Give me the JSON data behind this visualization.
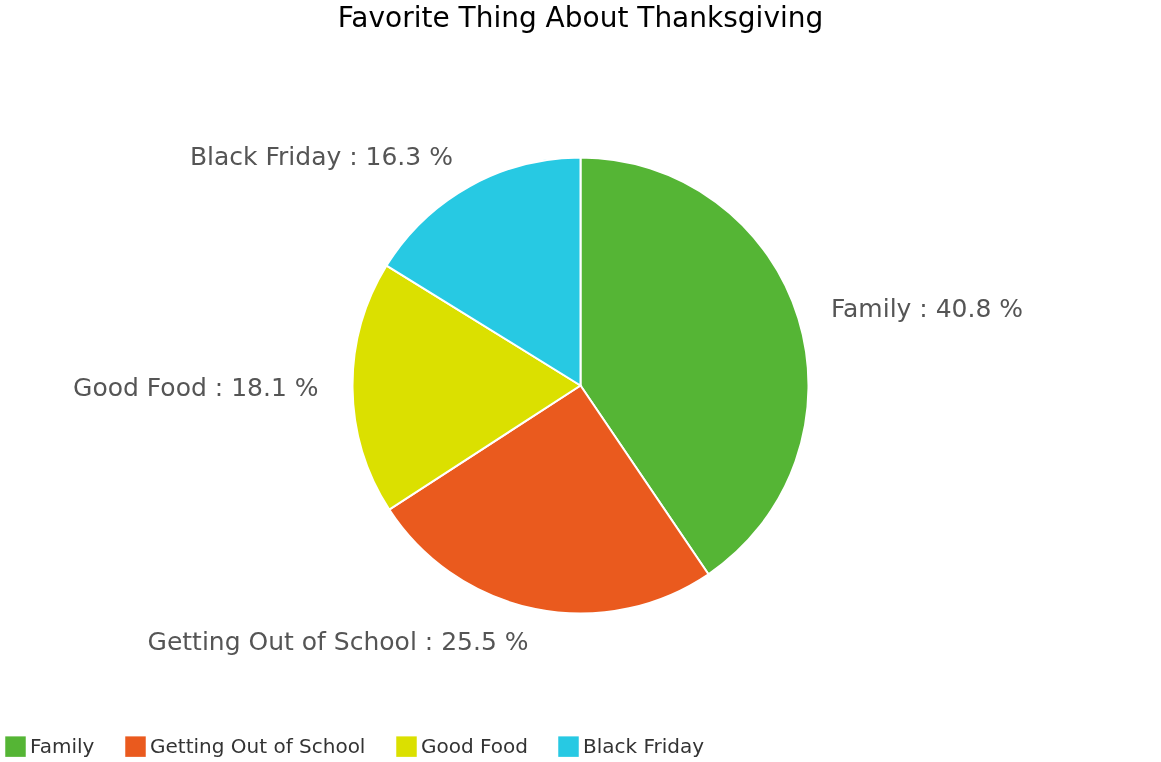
{
  "chart_data": {
    "type": "pie",
    "title": "Favorite Thing About Thanksgiving",
    "categories": [
      "Family",
      "Getting Out of School",
      "Good Food",
      "Black Friday"
    ],
    "values": [
      40.8,
      25.5,
      18.1,
      16.3
    ],
    "colors": [
      "#55b535",
      "#ea5a1e",
      "#dbe000",
      "#27c9e3"
    ],
    "value_labels": [
      "Family : 40.8 %",
      "Getting Out of School : 25.5 %",
      "Good Food : 18.1 %",
      "Black Friday : 16.3 %"
    ],
    "legend": "bottom"
  }
}
